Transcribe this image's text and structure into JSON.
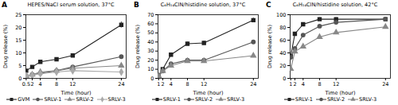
{
  "chart_data": [
    {
      "type": "line",
      "title": "HEPES/NaCl serum solution, 37°C",
      "annotations": [
        "A"
      ],
      "xlabel": "Time (hour)",
      "ylabel": "Drug release (%)",
      "x": [
        0.5,
        2,
        4,
        8,
        12,
        24
      ],
      "series": [
        {
          "name": "GVM",
          "color": "#222222",
          "marker": "square",
          "values": [
            3.0,
            4.5,
            6.5,
            7.5,
            9.0,
            21.0
          ],
          "yerr": [
            0.3,
            0.4,
            0.5,
            0.5,
            0.6,
            1.2
          ]
        },
        {
          "name": "SRLV-1",
          "color": "#555555",
          "marker": "circle",
          "values": [
            1.0,
            1.5,
            2.0,
            3.0,
            4.5,
            8.5
          ],
          "yerr": [
            0.2,
            0.2,
            0.3,
            0.3,
            0.4,
            0.6
          ]
        },
        {
          "name": "SRLV-2",
          "color": "#888888",
          "marker": "triangle",
          "values": [
            1.0,
            1.5,
            2.5,
            3.0,
            4.0,
            5.0
          ],
          "yerr": [
            0.2,
            0.2,
            0.3,
            0.3,
            0.3,
            0.5
          ]
        },
        {
          "name": "SRLV-3",
          "color": "#aaaaaa",
          "marker": "diamond",
          "values": [
            1.0,
            1.2,
            1.8,
            2.5,
            3.0,
            2.5
          ],
          "yerr": [
            0.2,
            0.2,
            0.2,
            0.3,
            0.3,
            0.4
          ]
        }
      ],
      "xlim": [
        0.425,
        25.2
      ],
      "xticks": [
        0.5,
        2,
        4,
        8,
        12,
        24
      ],
      "ylim": [
        0,
        25
      ],
      "yticks": [
        0,
        5,
        10,
        15,
        20,
        25
      ],
      "grid": false,
      "legend": "bottom"
    },
    {
      "type": "line",
      "title": "C₆H₁₄ClN/histidine solution, 37°C",
      "annotations": [
        "B"
      ],
      "xlabel": "Time (hour)",
      "ylabel": "Drug release (%)",
      "x": [
        1,
        2,
        4,
        8,
        12,
        24
      ],
      "series": [
        {
          "name": "SRLV-1",
          "color": "#222222",
          "marker": "square",
          "values": [
            3.0,
            10.0,
            26.0,
            38.0,
            39.0,
            64.0
          ],
          "yerr": [
            0.3,
            0.8,
            1.5,
            2.0,
            2.0,
            2.5
          ]
        },
        {
          "name": "SRLV-2",
          "color": "#555555",
          "marker": "circle",
          "values": [
            2.5,
            8.0,
            16.0,
            20.0,
            20.0,
            40.0
          ],
          "yerr": [
            0.3,
            0.6,
            1.0,
            1.2,
            1.5,
            2.0
          ]
        },
        {
          "name": "SRLV-3",
          "color": "#888888",
          "marker": "triangle",
          "values": [
            2.5,
            8.0,
            14.0,
            19.0,
            19.0,
            25.0
          ],
          "yerr": [
            0.3,
            0.6,
            0.8,
            1.0,
            1.2,
            1.5
          ]
        }
      ],
      "xlim": [
        0.85,
        25.2
      ],
      "xticks": [
        1,
        2,
        4,
        8,
        12,
        24
      ],
      "ylim": [
        0,
        70
      ],
      "yticks": [
        0,
        10,
        20,
        30,
        40,
        50,
        60,
        70
      ],
      "grid": false,
      "legend": "bottom"
    },
    {
      "type": "line",
      "title": "C₆H₁₄ClN/histidine solution, 42°C",
      "annotations": [
        "C"
      ],
      "xlabel": "Time (hour)",
      "ylabel": "Drug release (%)",
      "x": [
        1,
        2,
        4,
        8,
        12,
        24
      ],
      "series": [
        {
          "name": "SRLV-1",
          "color": "#222222",
          "marker": "square",
          "values": [
            35.0,
            70.0,
            85.0,
            93.0,
            93.0,
            93.0
          ],
          "yerr": [
            1.5,
            2.0,
            2.5,
            2.5,
            2.5,
            2.5
          ]
        },
        {
          "name": "SRLV-2",
          "color": "#555555",
          "marker": "circle",
          "values": [
            33.0,
            47.0,
            68.0,
            82.0,
            88.0,
            93.0
          ],
          "yerr": [
            1.5,
            1.8,
            2.0,
            2.5,
            2.5,
            2.5
          ]
        },
        {
          "name": "SRLV-3",
          "color": "#888888",
          "marker": "triangle",
          "values": [
            15.0,
            42.0,
            50.0,
            65.0,
            72.0,
            81.0
          ],
          "yerr": [
            1.0,
            1.5,
            1.8,
            2.0,
            2.0,
            2.5
          ]
        }
      ],
      "xlim": [
        0.85,
        25.2
      ],
      "xticks": [
        1,
        2,
        4,
        8,
        12,
        24
      ],
      "ylim": [
        0,
        100
      ],
      "yticks": [
        0,
        20,
        40,
        60,
        80,
        100
      ],
      "grid": false,
      "legend": "bottom"
    }
  ]
}
